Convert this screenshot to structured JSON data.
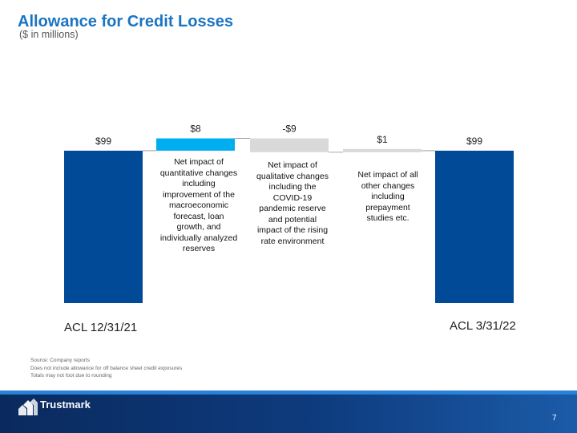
{
  "header": {
    "title": "Allowance for Credit Losses",
    "subtitle": "($ in millions)"
  },
  "chart_data": {
    "type": "bar",
    "subtype": "waterfall",
    "categories": [
      "ACL 12/31/21",
      "",
      "",
      "",
      "ACL 3/31/22"
    ],
    "values": [
      99,
      8,
      -9,
      1,
      99
    ],
    "data_labels": [
      "$99",
      "$8",
      "-$9",
      "$1",
      "$99"
    ],
    "annotations": [
      "",
      "Net impact of quantitative changes including improvement of the macroeconomic forecast, loan growth, and individually analyzed reserves",
      "Net impact of qualitative changes including the COVID-19 pandemic reserve and potential impact of the rising rate environment",
      "Net impact of all other changes including prepayment studies etc.",
      ""
    ],
    "colors": [
      "#004a98",
      "#00aeef",
      "#d9d9d9",
      "#d9d9d9",
      "#004a98"
    ],
    "grid": false,
    "legend": "none"
  },
  "footnotes": [
    "Source: Company reports",
    "Does not include allowance for off balance sheet credit exposures",
    "Totals may not foot due to rounding"
  ],
  "footer": {
    "brand": "Trustmark",
    "page_number": "7",
    "logo_icon": "trustmark-logo-icon"
  }
}
